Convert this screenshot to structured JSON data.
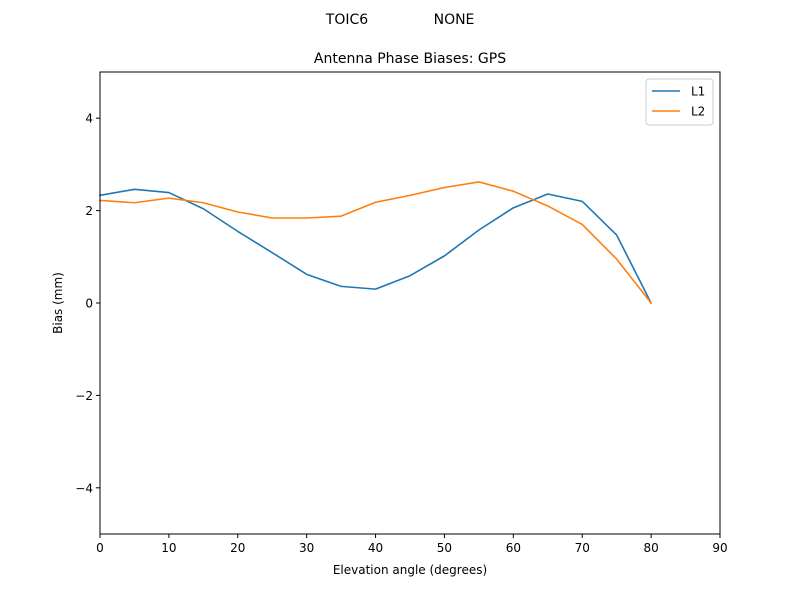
{
  "chart_data": {
    "type": "line",
    "suptitle": {
      "antenna": "TOIC6",
      "radome": "NONE"
    },
    "title": "Antenna Phase Biases: GPS",
    "xlabel": "Elevation angle (degrees)",
    "ylabel": "Bias (mm)",
    "xlim": [
      0,
      90
    ],
    "ylim": [
      -5,
      5
    ],
    "x_ticks": [
      0,
      10,
      20,
      30,
      40,
      50,
      60,
      70,
      80,
      90
    ],
    "x_tick_labels": [
      "0",
      "10",
      "20",
      "30",
      "40",
      "50",
      "60",
      "70",
      "80",
      "90"
    ],
    "y_ticks": [
      -4,
      -2,
      0,
      2,
      4
    ],
    "y_tick_labels": [
      "−4",
      "−2",
      "0",
      "2",
      "4"
    ],
    "grid": false,
    "legend_position": "top-right",
    "x": [
      0,
      5,
      10,
      15,
      20,
      25,
      30,
      35,
      40,
      45,
      50,
      55,
      60,
      65,
      70,
      75,
      80
    ],
    "series": [
      {
        "name": "L1",
        "color": "#1f77b4",
        "values": [
          2.33,
          2.46,
          2.39,
          2.04,
          1.55,
          1.09,
          0.62,
          0.36,
          0.3,
          0.59,
          1.02,
          1.58,
          2.06,
          2.36,
          2.2,
          1.47,
          0.0
        ]
      },
      {
        "name": "L2",
        "color": "#ff7f0e",
        "values": [
          2.22,
          2.17,
          2.27,
          2.17,
          1.97,
          1.84,
          1.84,
          1.88,
          2.18,
          2.33,
          2.5,
          2.62,
          2.42,
          2.1,
          1.7,
          0.95,
          0.0
        ]
      }
    ]
  }
}
